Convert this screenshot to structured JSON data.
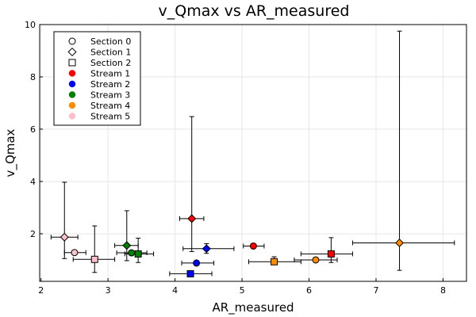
{
  "chart_data": {
    "type": "scatter",
    "title": "v_Qmax vs AR_measured",
    "xlabel": "AR_measured",
    "ylabel": "v_Qmax",
    "xlim": [
      1.98,
      8.35
    ],
    "ylim": [
      0.18,
      10.0
    ],
    "xticks": [
      2,
      3,
      4,
      5,
      6,
      7,
      8
    ],
    "yticks": [
      2,
      4,
      6,
      8,
      10
    ],
    "grid": true,
    "legend_position": "top-left",
    "legend": {
      "shapes": [
        {
          "label": "Section 0",
          "marker": "circle"
        },
        {
          "label": "Section 1",
          "marker": "diamond"
        },
        {
          "label": "Section 2",
          "marker": "square"
        }
      ],
      "colors": [
        {
          "label": "Stream 1",
          "color": "#ff0000"
        },
        {
          "label": "Stream 2",
          "color": "#0000ff"
        },
        {
          "label": "Stream 3",
          "color": "#008000"
        },
        {
          "label": "Stream 4",
          "color": "#ff8c00"
        },
        {
          "label": "Stream 5",
          "color": "#ffc0cb"
        }
      ]
    },
    "points": [
      {
        "series": "Stream 1",
        "section": "Section 0",
        "color": "#ff0000",
        "marker": "circle",
        "x": 5.17,
        "y": 1.53,
        "xerr": [
          5.02,
          5.33
        ],
        "yerr": [
          1.45,
          1.62
        ]
      },
      {
        "series": "Stream 1",
        "section": "Section 1",
        "color": "#ff0000",
        "marker": "diamond",
        "x": 4.25,
        "y": 2.58,
        "xerr": [
          4.07,
          4.43
        ],
        "yerr": [
          1.32,
          6.48
        ]
      },
      {
        "series": "Stream 1",
        "section": "Section 2",
        "color": "#ff0000",
        "marker": "square",
        "x": 6.33,
        "y": 1.23,
        "xerr": [
          5.88,
          6.65
        ],
        "yerr": [
          0.9,
          1.85
        ]
      },
      {
        "series": "Stream 2",
        "section": "Section 0",
        "color": "#0000ff",
        "marker": "circle",
        "x": 4.32,
        "y": 0.88,
        "xerr": [
          4.1,
          4.58
        ],
        "yerr": [
          0.83,
          0.93
        ]
      },
      {
        "series": "Stream 2",
        "section": "Section 1",
        "color": "#0000ff",
        "marker": "diamond",
        "x": 4.47,
        "y": 1.43,
        "xerr": [
          4.12,
          4.88
        ],
        "yerr": [
          1.25,
          1.62
        ]
      },
      {
        "series": "Stream 2",
        "section": "Section 2",
        "color": "#0000ff",
        "marker": "square",
        "x": 4.23,
        "y": 0.47,
        "xerr": [
          3.92,
          4.55
        ],
        "yerr": [
          0.43,
          0.52
        ]
      },
      {
        "series": "Stream 3",
        "section": "Section 0",
        "color": "#008000",
        "marker": "circle",
        "x": 3.35,
        "y": 1.27,
        "xerr": [
          3.13,
          3.58
        ],
        "yerr": [
          1.18,
          1.36
        ]
      },
      {
        "series": "Stream 3",
        "section": "Section 1",
        "color": "#008000",
        "marker": "diamond",
        "x": 3.28,
        "y": 1.55,
        "xerr": [
          3.1,
          3.45
        ],
        "yerr": [
          0.97,
          2.88
        ]
      },
      {
        "series": "Stream 3",
        "section": "Section 2",
        "color": "#008000",
        "marker": "square",
        "x": 3.45,
        "y": 1.23,
        "xerr": [
          3.25,
          3.68
        ],
        "yerr": [
          0.9,
          1.83
        ]
      },
      {
        "series": "Stream 4",
        "section": "Section 0",
        "color": "#ff8c00",
        "marker": "circle",
        "x": 6.1,
        "y": 1.0,
        "xerr": [
          5.78,
          6.42
        ],
        "yerr": [
          0.95,
          1.05
        ]
      },
      {
        "series": "Stream 4",
        "section": "Section 1",
        "color": "#ff8c00",
        "marker": "diamond",
        "x": 7.35,
        "y": 1.65,
        "xerr": [
          6.65,
          8.17
        ],
        "yerr": [
          0.6,
          9.75
        ]
      },
      {
        "series": "Stream 4",
        "section": "Section 2",
        "color": "#ff8c00",
        "marker": "square",
        "x": 5.48,
        "y": 0.93,
        "xerr": [
          5.1,
          5.88
        ],
        "yerr": [
          0.83,
          1.12
        ]
      },
      {
        "series": "Stream 5",
        "section": "Section 0",
        "color": "#ffc0cb",
        "marker": "circle",
        "x": 2.5,
        "y": 1.28,
        "xerr": [
          2.35,
          2.67
        ],
        "yerr": [
          1.22,
          1.35
        ]
      },
      {
        "series": "Stream 5",
        "section": "Section 1",
        "color": "#ffc0cb",
        "marker": "diamond",
        "x": 2.35,
        "y": 1.87,
        "xerr": [
          2.15,
          2.55
        ],
        "yerr": [
          1.05,
          3.97
        ]
      },
      {
        "series": "Stream 5",
        "section": "Section 2",
        "color": "#ffc0cb",
        "marker": "square",
        "x": 2.8,
        "y": 1.02,
        "xerr": [
          2.48,
          3.1
        ],
        "yerr": [
          0.52,
          2.3
        ]
      }
    ]
  }
}
